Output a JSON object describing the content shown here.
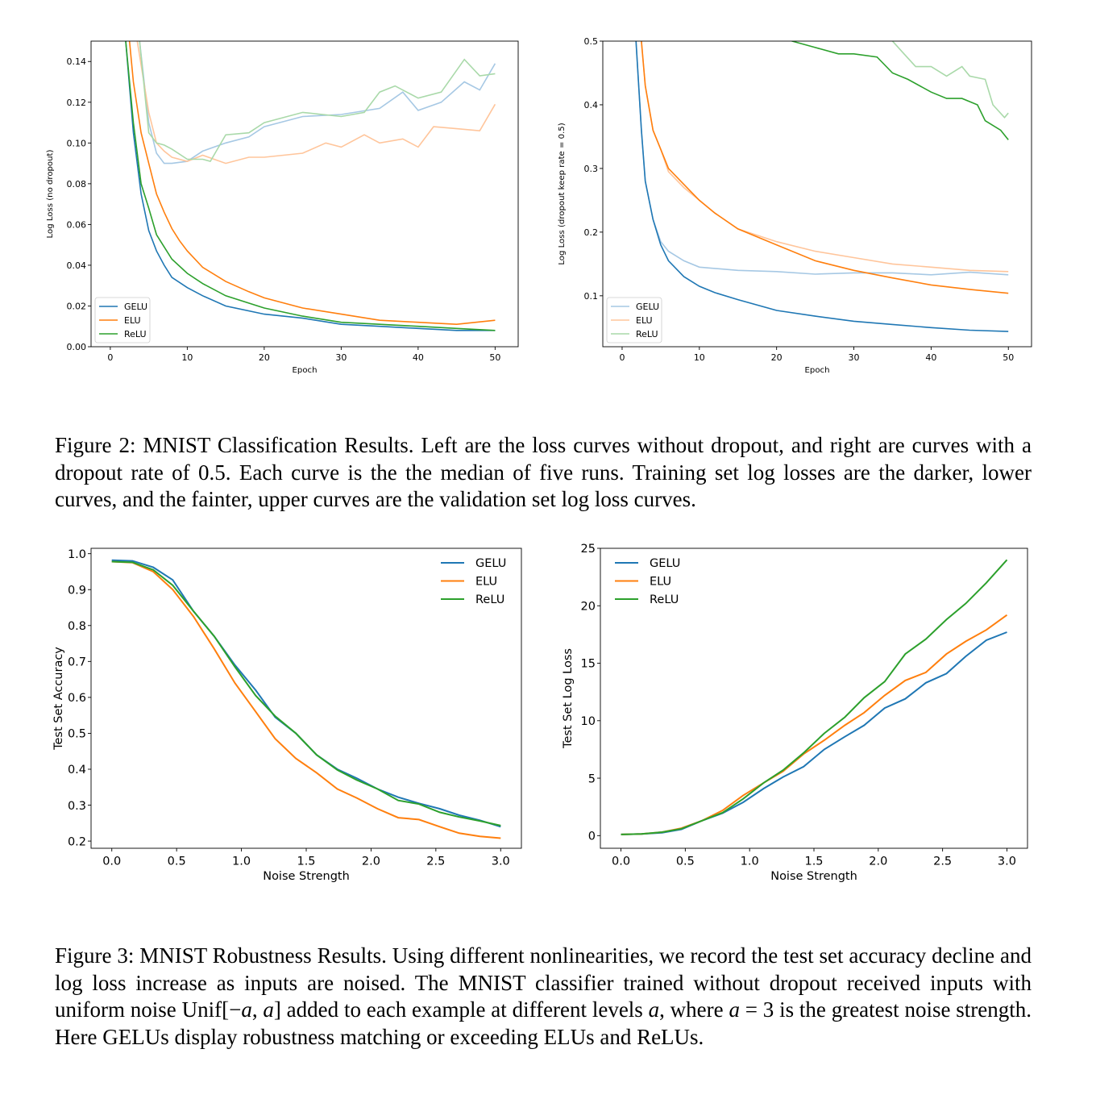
{
  "colors": {
    "GELU": "#1f77b4",
    "ELU": "#ff7f0e",
    "ReLU": "#2ca02c"
  },
  "figure2": {
    "caption": "Figure 2:  MNIST Classification Results.  Left are the loss curves without dropout, and right are curves with a dropout rate of 0.5. Each curve is the the median of five runs. Training set log losses are the darker, lower curves, and the fainter, upper curves are the validation set log loss curves."
  },
  "figure3": {
    "caption_parts": [
      "Figure 3: MNIST Robustness Results. Using different nonlinearities, we record the test set accuracy decline and log loss increase as inputs are noised.  The MNIST classifier trained without dropout received inputs with uniform noise Unif[−",
      "a",
      ", ",
      "a",
      "] added to each example at different levels ",
      "a",
      ", where ",
      "a",
      " = 3 is the greatest noise strength. Here GELUs display robustness matching or exceeding ELUs and ReLUs."
    ]
  },
  "chart_data": [
    {
      "type": "line",
      "xlabel": "Epoch",
      "ylabel": "Log Loss (no dropout)",
      "xlim": [
        -2.5,
        53
      ],
      "ylim": [
        0,
        0.15
      ],
      "xticks": [
        0,
        10,
        20,
        30,
        40,
        50
      ],
      "yticks": [
        "0.00",
        "0.02",
        "0.04",
        "0.06",
        "0.08",
        "0.10",
        "0.12",
        "0.14"
      ],
      "legend": {
        "position": "lower-left",
        "entries": [
          "GELU",
          "ELU",
          "ReLU"
        ],
        "style": "dark"
      },
      "grid": false,
      "series": [
        {
          "name": "GELU",
          "split": "validation",
          "faint": true,
          "x": [
            1,
            3.8,
            5,
            6,
            7,
            8,
            10,
            12,
            15,
            18,
            20,
            25,
            30,
            35,
            38,
            40,
            43,
            46,
            48,
            50
          ],
          "y": [
            0.3,
            0.15,
            0.11,
            0.095,
            0.09,
            0.09,
            0.091,
            0.096,
            0.1,
            0.103,
            0.108,
            0.113,
            0.114,
            0.117,
            0.125,
            0.116,
            0.12,
            0.13,
            0.126,
            0.139
          ]
        },
        {
          "name": "ELU",
          "split": "validation",
          "faint": true,
          "x": [
            1,
            3.5,
            5,
            6,
            7,
            8,
            10,
            12,
            15,
            18,
            20,
            25,
            28,
            30,
            33,
            35,
            38,
            40,
            42,
            45,
            48,
            50
          ],
          "y": [
            0.3,
            0.15,
            0.115,
            0.1,
            0.096,
            0.093,
            0.091,
            0.094,
            0.09,
            0.093,
            0.093,
            0.095,
            0.1,
            0.098,
            0.104,
            0.1,
            0.102,
            0.098,
            0.108,
            0.107,
            0.106,
            0.119
          ]
        },
        {
          "name": "ReLU",
          "split": "validation",
          "faint": true,
          "x": [
            1,
            3.8,
            5,
            6,
            7,
            8,
            10,
            12,
            13,
            15,
            18,
            20,
            25,
            30,
            33,
            35,
            37,
            40,
            43,
            46,
            48,
            50
          ],
          "y": [
            0.3,
            0.15,
            0.105,
            0.1,
            0.099,
            0.097,
            0.092,
            0.092,
            0.091,
            0.104,
            0.105,
            0.11,
            0.115,
            0.113,
            0.115,
            0.125,
            0.128,
            0.122,
            0.125,
            0.141,
            0.133,
            0.134
          ]
        },
        {
          "name": "GELU",
          "split": "train",
          "faint": false,
          "x": [
            1,
            2,
            3,
            4,
            5,
            6,
            7,
            8,
            10,
            12,
            15,
            20,
            25,
            30,
            35,
            40,
            45,
            50
          ],
          "y": [
            0.3,
            0.15,
            0.105,
            0.075,
            0.057,
            0.047,
            0.04,
            0.034,
            0.029,
            0.025,
            0.02,
            0.016,
            0.014,
            0.011,
            0.01,
            0.009,
            0.008,
            0.008
          ]
        },
        {
          "name": "ELU",
          "split": "train",
          "faint": false,
          "x": [
            1,
            2.5,
            3,
            4,
            5,
            6,
            7,
            8,
            9,
            10,
            12,
            15,
            18,
            20,
            25,
            30,
            35,
            40,
            45,
            50
          ],
          "y": [
            0.3,
            0.15,
            0.13,
            0.105,
            0.09,
            0.075,
            0.066,
            0.058,
            0.052,
            0.047,
            0.039,
            0.032,
            0.027,
            0.024,
            0.019,
            0.016,
            0.013,
            0.012,
            0.011,
            0.013
          ]
        },
        {
          "name": "ReLU",
          "split": "train",
          "faint": false,
          "x": [
            1,
            2,
            3,
            4,
            5,
            6,
            7,
            8,
            10,
            12,
            15,
            20,
            25,
            30,
            35,
            40,
            45,
            50
          ],
          "y": [
            0.3,
            0.15,
            0.11,
            0.08,
            0.068,
            0.055,
            0.049,
            0.043,
            0.036,
            0.031,
            0.025,
            0.019,
            0.015,
            0.012,
            0.011,
            0.01,
            0.009,
            0.008
          ]
        }
      ]
    },
    {
      "type": "line",
      "xlabel": "Epoch",
      "ylabel": "Log Loss (dropout keep rate = 0.5)",
      "xlim": [
        -2.5,
        53
      ],
      "ylim": [
        0.02,
        0.5
      ],
      "xticks": [
        0,
        10,
        20,
        30,
        40,
        50
      ],
      "yticks": [
        "0.1",
        "0.2",
        "0.3",
        "0.4",
        "0.5"
      ],
      "legend": {
        "position": "lower-left",
        "entries": [
          "GELU",
          "ELU",
          "ReLU"
        ],
        "style": "faint"
      },
      "grid": false,
      "series": [
        {
          "name": "GELU",
          "split": "validation",
          "faint": true,
          "x": [
            1,
            1.8,
            2.5,
            3,
            4,
            5,
            6,
            8,
            10,
            15,
            20,
            25,
            30,
            35,
            40,
            45,
            50
          ],
          "y": [
            0.9,
            0.5,
            0.36,
            0.28,
            0.22,
            0.185,
            0.17,
            0.155,
            0.145,
            0.14,
            0.138,
            0.134,
            0.136,
            0.136,
            0.133,
            0.137,
            0.133
          ]
        },
        {
          "name": "ELU",
          "split": "validation",
          "faint": true,
          "x": [
            1,
            2.5,
            3,
            4,
            5,
            6,
            8,
            10,
            12,
            15,
            20,
            25,
            30,
            35,
            40,
            45,
            50
          ],
          "y": [
            0.9,
            0.5,
            0.43,
            0.36,
            0.33,
            0.295,
            0.27,
            0.25,
            0.23,
            0.205,
            0.185,
            0.17,
            0.16,
            0.15,
            0.145,
            0.14,
            0.138
          ]
        },
        {
          "name": "ReLU",
          "split": "validation",
          "faint": true,
          "x": [
            34,
            35,
            36.5,
            38,
            40,
            42,
            44,
            45,
            47,
            48,
            49.5,
            50
          ],
          "y": [
            0.55,
            0.5,
            0.48,
            0.46,
            0.46,
            0.445,
            0.46,
            0.445,
            0.44,
            0.4,
            0.38,
            0.387
          ]
        },
        {
          "name": "GELU",
          "split": "train",
          "faint": false,
          "x": [
            1,
            1.8,
            2.5,
            3,
            4,
            5,
            6,
            8,
            10,
            12,
            15,
            20,
            25,
            30,
            35,
            40,
            45,
            50
          ],
          "y": [
            0.9,
            0.5,
            0.36,
            0.28,
            0.22,
            0.18,
            0.155,
            0.13,
            0.115,
            0.105,
            0.094,
            0.077,
            0.068,
            0.06,
            0.055,
            0.05,
            0.046,
            0.044
          ]
        },
        {
          "name": "ELU",
          "split": "train",
          "faint": false,
          "x": [
            1,
            2.5,
            3,
            4,
            5,
            6,
            8,
            10,
            12,
            15,
            20,
            25,
            30,
            35,
            40,
            45,
            50
          ],
          "y": [
            0.9,
            0.5,
            0.43,
            0.36,
            0.33,
            0.3,
            0.275,
            0.25,
            0.23,
            0.205,
            0.18,
            0.155,
            0.14,
            0.128,
            0.117,
            0.11,
            0.104
          ]
        },
        {
          "name": "ReLU",
          "split": "train",
          "faint": false,
          "x": [
            21,
            22,
            25,
            28,
            30,
            33,
            35,
            37,
            40,
            42,
            44,
            46,
            47,
            49,
            50
          ],
          "y": [
            0.52,
            0.5,
            0.49,
            0.48,
            0.48,
            0.475,
            0.45,
            0.44,
            0.42,
            0.41,
            0.41,
            0.4,
            0.375,
            0.36,
            0.345
          ]
        }
      ]
    },
    {
      "type": "line",
      "xlabel": "Noise Strength",
      "ylabel": "Test Set Accuracy",
      "xlim": [
        -0.16,
        3.16
      ],
      "ylim": [
        0.18,
        1.015
      ],
      "xticks": [
        "0.0",
        "0.5",
        "1.0",
        "1.5",
        "2.0",
        "2.5",
        "3.0"
      ],
      "yticks": [
        "0.2",
        "0.3",
        "0.4",
        "0.5",
        "0.6",
        "0.7",
        "0.8",
        "0.9",
        "1.0"
      ],
      "legend": {
        "position": "upper-right",
        "entries": [
          "GELU",
          "ELU",
          "ReLU"
        ],
        "style": "dark"
      },
      "grid": false,
      "x": [
        0,
        0.16,
        0.32,
        0.47,
        0.63,
        0.79,
        0.95,
        1.11,
        1.26,
        1.42,
        1.58,
        1.74,
        1.89,
        2.05,
        2.21,
        2.37,
        2.53,
        2.68,
        2.84,
        3.0
      ],
      "series": [
        {
          "name": "GELU",
          "y": [
            0.982,
            0.98,
            0.962,
            0.927,
            0.84,
            0.77,
            0.69,
            0.62,
            0.545,
            0.5,
            0.44,
            0.4,
            0.375,
            0.345,
            0.322,
            0.305,
            0.29,
            0.272,
            0.258,
            0.24
          ]
        },
        {
          "name": "ELU",
          "y": [
            0.978,
            0.975,
            0.95,
            0.9,
            0.825,
            0.735,
            0.64,
            0.56,
            0.485,
            0.43,
            0.39,
            0.345,
            0.32,
            0.29,
            0.265,
            0.26,
            0.24,
            0.222,
            0.213,
            0.208
          ]
        },
        {
          "name": "ReLU",
          "y": [
            0.978,
            0.976,
            0.955,
            0.912,
            0.84,
            0.77,
            0.685,
            0.605,
            0.548,
            0.5,
            0.44,
            0.398,
            0.37,
            0.345,
            0.313,
            0.303,
            0.28,
            0.267,
            0.256,
            0.243
          ]
        }
      ]
    },
    {
      "type": "line",
      "xlabel": "Noise Strength",
      "ylabel": "Test Set Log Loss",
      "xlim": [
        -0.16,
        3.16
      ],
      "ylim": [
        -1.1,
        25
      ],
      "xticks": [
        "0.0",
        "0.5",
        "1.0",
        "1.5",
        "2.0",
        "2.5",
        "3.0"
      ],
      "yticks": [
        "0",
        "5",
        "10",
        "15",
        "20",
        "25"
      ],
      "legend": {
        "position": "upper-left",
        "entries": [
          "GELU",
          "ELU",
          "ReLU"
        ],
        "style": "dark"
      },
      "grid": false,
      "x": [
        0,
        0.16,
        0.32,
        0.47,
        0.63,
        0.79,
        0.95,
        1.11,
        1.26,
        1.42,
        1.58,
        1.74,
        1.89,
        2.05,
        2.21,
        2.37,
        2.53,
        2.68,
        2.84,
        3.0
      ],
      "series": [
        {
          "name": "GELU",
          "y": [
            0.1,
            0.15,
            0.25,
            0.55,
            1.3,
            1.95,
            2.9,
            4.1,
            5.1,
            6.0,
            7.5,
            8.6,
            9.6,
            11.1,
            11.9,
            13.3,
            14.1,
            15.6,
            17.0,
            17.7
          ]
        },
        {
          "name": "ELU",
          "y": [
            0.1,
            0.15,
            0.3,
            0.65,
            1.3,
            2.2,
            3.5,
            4.6,
            5.6,
            7.1,
            8.3,
            9.6,
            10.7,
            12.2,
            13.5,
            14.2,
            15.8,
            16.9,
            17.9,
            19.2
          ]
        },
        {
          "name": "ReLU",
          "y": [
            0.1,
            0.15,
            0.3,
            0.6,
            1.3,
            2.0,
            3.2,
            4.6,
            5.7,
            7.2,
            8.9,
            10.3,
            12.0,
            13.4,
            15.8,
            17.1,
            18.8,
            20.2,
            22.0,
            24.0
          ]
        }
      ]
    }
  ]
}
